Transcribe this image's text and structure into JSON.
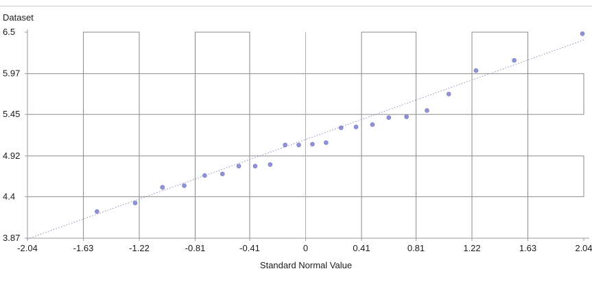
{
  "chart_data": {
    "type": "scatter",
    "title": "",
    "xlabel": "Standard Normal Value",
    "ylabel": "Dataset",
    "xlim": [
      -2.04,
      2.04
    ],
    "ylim": [
      3.87,
      6.5
    ],
    "x_ticks": [
      "-2.04",
      "-1.63",
      "-1.22",
      "-0.81",
      "-0.41",
      "0",
      "0.41",
      "0.81",
      "1.22",
      "1.63",
      "2.04"
    ],
    "y_ticks": [
      "3.87",
      "4.4",
      "4.92",
      "5.45",
      "5.97",
      "6.5"
    ],
    "grid": false,
    "series": [
      {
        "x": [
          -1.53,
          -1.25,
          -1.05,
          -0.89,
          -0.74,
          -0.61,
          -0.49,
          -0.37,
          -0.26,
          -0.15,
          -0.05,
          0.05,
          0.15,
          0.26,
          0.37,
          0.49,
          0.61,
          0.74,
          0.89,
          1.05,
          1.25,
          1.53,
          2.03
        ],
        "y": [
          4.21,
          4.32,
          4.52,
          4.54,
          4.67,
          4.69,
          4.79,
          4.79,
          4.81,
          5.06,
          5.06,
          5.07,
          5.09,
          5.28,
          5.29,
          5.32,
          5.41,
          5.42,
          5.5,
          5.71,
          6.01,
          6.14,
          6.48
        ]
      }
    ],
    "reference_line": {
      "x": [
        -2.04,
        2.04
      ],
      "y": [
        3.86,
        6.4
      ]
    }
  },
  "colors": {
    "axis": "#9a9a9a",
    "band": "#8a8a8a",
    "point": "#8f93d6",
    "trend": "#8a8ac0"
  }
}
